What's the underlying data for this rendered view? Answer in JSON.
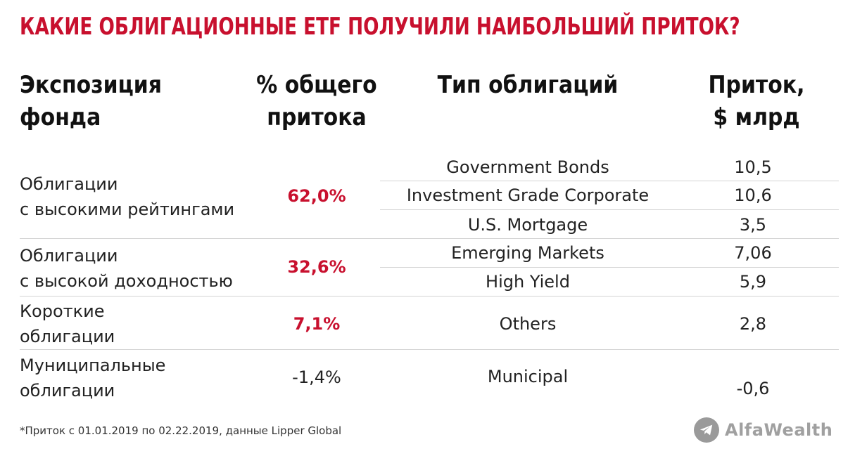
{
  "title": "КАКИЕ ОБЛИГАЦИОННЫЕ ETF ПОЛУЧИЛИ НАИБОЛЬШИЙ ПРИТОК?",
  "headers": {
    "exposure": "Экспозиция\nфонда",
    "share": "% общего\nпритока",
    "type": "Тип облигаций",
    "flow": "Приток,\n$ млрд"
  },
  "groups": [
    {
      "name": "Облигации\nс высокими рейтингами",
      "share": "62,0%"
    },
    {
      "name": "Облигации\nс высокой доходностью",
      "share": "32,6%"
    },
    {
      "name": "Короткие\nоблигации",
      "share": "7,1%"
    },
    {
      "name": "Муниципальные\nоблигации",
      "share": "-1,4%"
    }
  ],
  "rows": [
    {
      "type": "Government Bonds",
      "flow": "10,5"
    },
    {
      "type": "Investment Grade Corporate",
      "flow": "10,6"
    },
    {
      "type": "U.S. Mortgage",
      "flow": "3,5"
    },
    {
      "type": "Emerging Markets",
      "flow": "7,06"
    },
    {
      "type": "High Yield",
      "flow": "5,9"
    },
    {
      "type": "Others",
      "flow": "2,8"
    },
    {
      "type": "Municipal",
      "flow": "-0,6"
    }
  ],
  "footnote": "*Приток с 01.01.2019 по 02.22.2019, данные Lipper Global",
  "brand": {
    "name": "AlfaWealth",
    "icon": "telegram-plane-icon"
  },
  "colors": {
    "accent": "#c8102e",
    "logo": "#9a9a9a"
  }
}
